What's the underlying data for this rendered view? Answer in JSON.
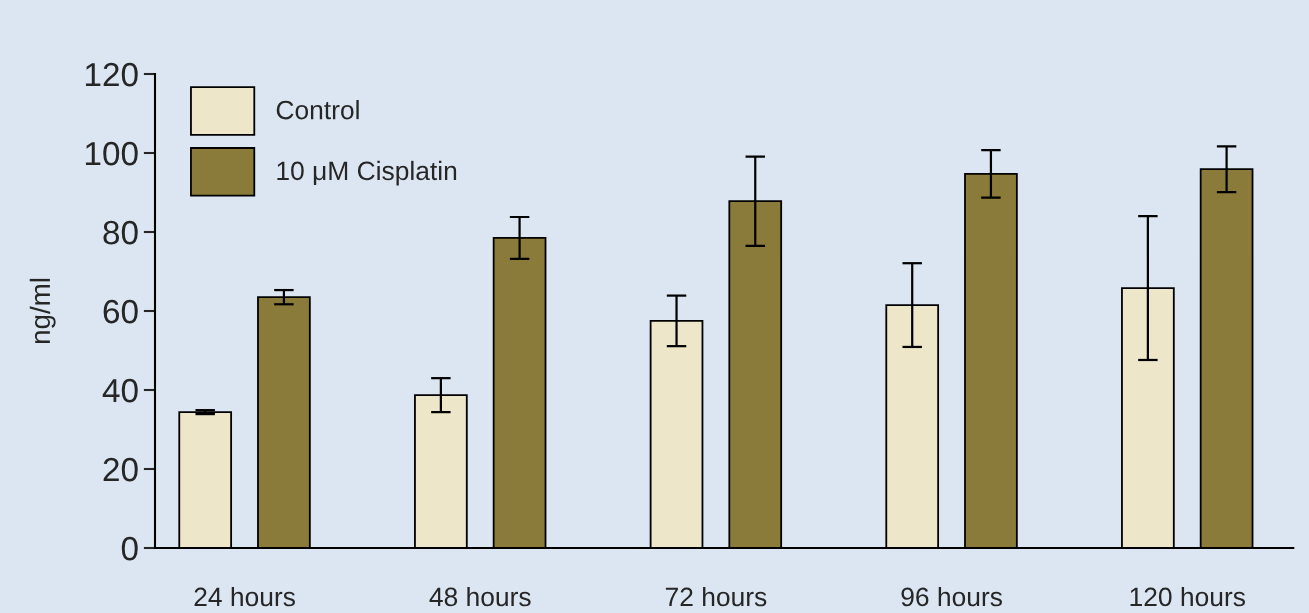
{
  "chart_data": {
    "type": "bar",
    "ylabel": "ng/ml",
    "categories": [
      "24 hours",
      "48 hours",
      "72 hours",
      "96 hours",
      "120 hours"
    ],
    "series": [
      {
        "name": "Control",
        "color": "#ede6c9",
        "values": [
          34.4,
          38.7,
          57.5,
          61.5,
          65.8
        ],
        "errors": [
          0.5,
          4.3,
          6.4,
          10.6,
          18.2
        ]
      },
      {
        "name": "10 μM Cisplatin",
        "color": "#8b7b3a",
        "values": [
          63.5,
          78.5,
          87.8,
          94.7,
          95.9
        ],
        "errors": [
          1.8,
          5.3,
          11.3,
          6.0,
          5.8
        ]
      }
    ],
    "ylim": [
      0,
      120
    ],
    "yticks": [
      0,
      20,
      40,
      60,
      80,
      100,
      120
    ],
    "grid": false,
    "legend": "top left"
  }
}
